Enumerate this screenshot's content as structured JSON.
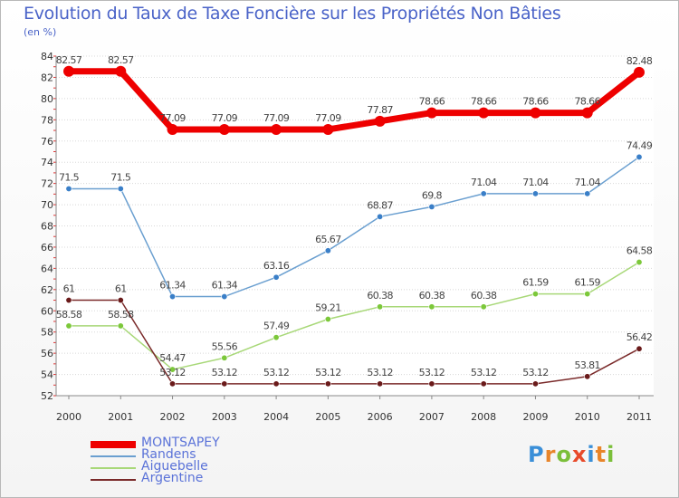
{
  "title": "Evolution du Taux de Taxe Foncière sur les Propriétés Non Bâties",
  "unit_label": "(en %)",
  "logo": {
    "letters": [
      "P",
      "r",
      "o",
      "x",
      "i",
      "t",
      "i"
    ],
    "colors": [
      "#3a8fd8",
      "#e8852a",
      "#7bbf3a",
      "#e84a2a",
      "#3a8fd8",
      "#e8852a",
      "#7bbf3a"
    ]
  },
  "chart_data": {
    "type": "line",
    "title": "Evolution du Taux de Taxe Foncière sur les Propriétés Non Bâties",
    "ylabel": "(en %)",
    "xlabel": "",
    "x": [
      "2000",
      "2001",
      "2002",
      "2003",
      "2004",
      "2005",
      "2006",
      "2007",
      "2008",
      "2009",
      "2010",
      "2011"
    ],
    "ylim": [
      52,
      84
    ],
    "yticks": [
      52,
      54,
      56,
      58,
      60,
      62,
      64,
      66,
      68,
      70,
      72,
      74,
      76,
      78,
      80,
      82,
      84
    ],
    "grid": "horizontal",
    "legend_position": "bottom-left",
    "series": [
      {
        "name": "MONTSAPEY",
        "color": "#ee0000",
        "width": 7,
        "marker_fill": "#ee0000",
        "values": [
          82.57,
          82.57,
          77.09,
          77.09,
          77.09,
          77.09,
          77.87,
          78.66,
          78.66,
          78.66,
          78.66,
          82.48
        ],
        "labels": [
          "82.57",
          "82.57",
          "77.09",
          "77.09",
          "77.09",
          "77.09",
          "77.87",
          "78.66",
          "78.66",
          "78.66",
          "78.66",
          "82.48"
        ]
      },
      {
        "name": "Randens",
        "color": "#6a9fd0",
        "width": 1.5,
        "marker_fill": "#3a7fc8",
        "values": [
          71.5,
          71.5,
          61.34,
          61.34,
          63.16,
          65.67,
          68.87,
          69.8,
          71.04,
          71.04,
          71.04,
          74.49
        ],
        "labels": [
          "71.5",
          "71.5",
          "61.34",
          "61.34",
          "63.16",
          "65.67",
          "68.87",
          "69.8",
          "71.04",
          "71.04",
          "71.04",
          "74.49"
        ]
      },
      {
        "name": "Aiguebelle",
        "color": "#a8d878",
        "width": 1.5,
        "marker_fill": "#7cc83a",
        "values": [
          58.58,
          58.58,
          54.47,
          55.56,
          57.49,
          59.21,
          60.38,
          60.38,
          60.38,
          61.59,
          61.59,
          64.58
        ],
        "labels": [
          "58.58",
          "58.58",
          "54.47",
          "55.56",
          "57.49",
          "59.21",
          "60.38",
          "60.38",
          "60.38",
          "61.59",
          "61.59",
          "64.58"
        ]
      },
      {
        "name": "Argentine",
        "color": "#7a2a2a",
        "width": 1.5,
        "marker_fill": "#6a1a1a",
        "values": [
          61,
          61,
          53.12,
          53.12,
          53.12,
          53.12,
          53.12,
          53.12,
          53.12,
          53.12,
          53.81,
          56.42
        ],
        "labels": [
          "61",
          "61",
          "53.12",
          "53.12",
          "53.12",
          "53.12",
          "53.12",
          "53.12",
          "53.12",
          "53.12",
          "53.81",
          "56.42"
        ]
      }
    ]
  }
}
